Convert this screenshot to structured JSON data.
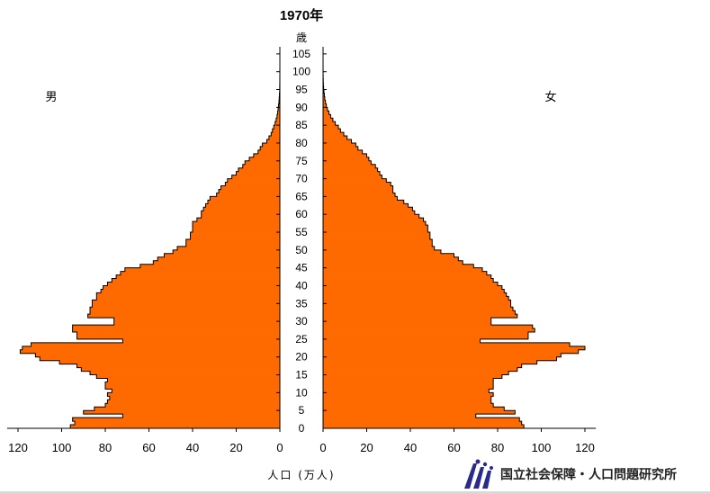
{
  "chart_data": {
    "type": "population_pyramid",
    "title": "1970年",
    "age_unit_label": "歳",
    "male_label": "男",
    "female_label": "女",
    "xlabel": "人口 (万人)",
    "age_ticks": [
      0,
      5,
      10,
      15,
      20,
      25,
      30,
      35,
      40,
      45,
      50,
      55,
      60,
      65,
      70,
      75,
      80,
      85,
      90,
      95,
      100,
      105
    ],
    "x_ticks": [
      120,
      100,
      80,
      60,
      40,
      20,
      0
    ],
    "xlim": [
      0,
      125
    ],
    "ylim": [
      0,
      107
    ],
    "male": [
      96,
      94,
      95,
      72,
      90,
      85,
      80,
      79,
      78,
      79,
      77,
      80,
      80,
      79,
      84,
      87,
      91,
      93,
      101,
      110,
      112,
      119,
      118,
      114,
      72,
      93,
      93,
      95,
      95,
      76,
      76,
      88,
      87,
      87,
      86,
      86,
      84,
      84,
      82,
      81,
      79,
      77,
      75,
      73,
      71,
      64,
      58,
      56,
      53,
      49,
      47,
      43,
      43,
      41,
      41,
      40,
      40,
      40,
      38,
      36,
      36,
      35,
      34,
      33,
      32,
      29,
      28,
      27,
      25,
      24,
      22,
      20,
      19,
      17,
      16,
      14,
      12,
      10,
      9,
      8,
      6,
      5,
      4,
      3.4,
      2.8,
      2.2,
      1.7,
      1.3,
      1.0,
      0.8,
      0.6,
      0.4,
      0.3,
      0.2,
      0.1,
      0.08,
      0.05,
      0.03,
      0.02,
      0.01,
      0.01,
      0.0,
      0.0,
      0.0,
      0.0,
      0.0
    ],
    "female": [
      92,
      91,
      90,
      70,
      88,
      83,
      78,
      77,
      77,
      78,
      76,
      78,
      78,
      78,
      82,
      85,
      89,
      91,
      98,
      107,
      109,
      117,
      120,
      113,
      72,
      94,
      94,
      97,
      96,
      77,
      77,
      89,
      88,
      87,
      86,
      86,
      85,
      84,
      83,
      82,
      80,
      78,
      77,
      75,
      73,
      69,
      64,
      62,
      60,
      54,
      51,
      50,
      50,
      49,
      49,
      48,
      48,
      47,
      46,
      44,
      42,
      41,
      39,
      37,
      34,
      33,
      32,
      32,
      31,
      29,
      27,
      26,
      25,
      24,
      22,
      21,
      20,
      18,
      16,
      15,
      13,
      11,
      9.5,
      8,
      7,
      5.6,
      4.5,
      3.5,
      2.7,
      2,
      1.5,
      1.1,
      0.8,
      0.6,
      0.4,
      0.25,
      0.15,
      0.1,
      0.05,
      0.03,
      0.02,
      0.01,
      0.01,
      0.0,
      0.0,
      0.0
    ]
  },
  "logo": {
    "text": "国立社会保障・人口問題研究所"
  }
}
